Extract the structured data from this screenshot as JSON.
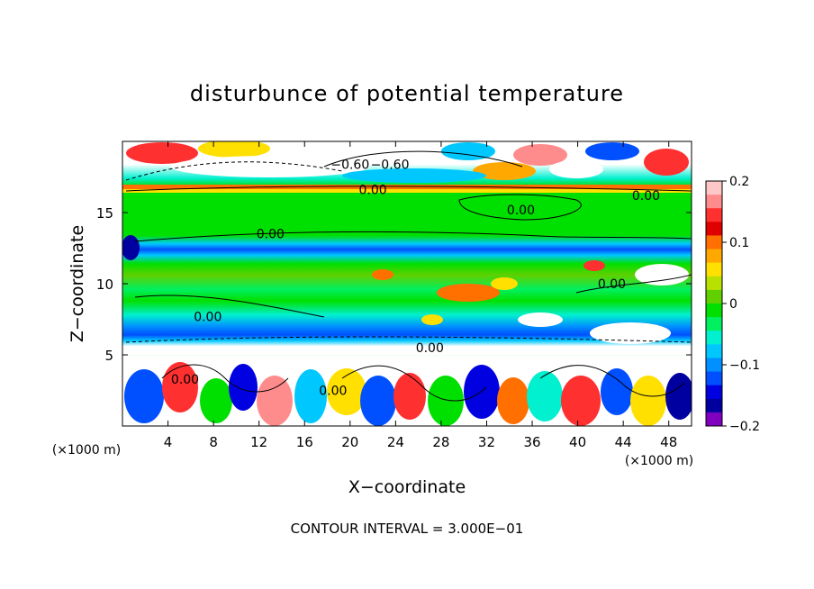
{
  "chart_data": {
    "type": "heatmap",
    "title": "disturbunce of potential temperature",
    "xlabel": "X−coordinate",
    "ylabel": "Z−coordinate",
    "x_unit": "(×1000 m)",
    "y_unit": "(×1000 m)",
    "xlim": [
      0,
      50
    ],
    "ylim": [
      0,
      20
    ],
    "x_ticks": [
      4,
      8,
      12,
      16,
      20,
      24,
      28,
      32,
      36,
      40,
      44,
      48
    ],
    "y_ticks": [
      5,
      10,
      15
    ],
    "colorbar": {
      "min": -0.2,
      "max": 0.2,
      "ticks": [
        0.2,
        0.1,
        0,
        -0.1,
        -0.2
      ],
      "tick_labels": [
        "0.2",
        "0.1",
        "0",
        "−0.1",
        "−0.2"
      ],
      "colors": [
        "#ffc8c8",
        "#ff8c8c",
        "#ff3030",
        "#e00000",
        "#ff7000",
        "#ffa800",
        "#ffe000",
        "#b8e000",
        "#60d000",
        "#00e000",
        "#00f060",
        "#00f0d0",
        "#00c8ff",
        "#0090ff",
        "#0050ff",
        "#0000e0",
        "#0000a0",
        "#8000c0"
      ]
    },
    "contour_labels": [
      {
        "x": 20,
        "z": 18.4,
        "text": "−0.60"
      },
      {
        "x": 23.5,
        "z": 18.4,
        "text": "−0.60"
      },
      {
        "x": 22,
        "z": 16.6,
        "text": "0.00"
      },
      {
        "x": 13,
        "z": 13.5,
        "text": "0.00"
      },
      {
        "x": 35,
        "z": 15.2,
        "text": "0.00"
      },
      {
        "x": 46,
        "z": 16.2,
        "text": "0.00"
      },
      {
        "x": 7.5,
        "z": 7.7,
        "text": "0.00"
      },
      {
        "x": 43,
        "z": 10,
        "text": "0.00"
      },
      {
        "x": 27,
        "z": 5.5,
        "text": "0.00"
      },
      {
        "x": 5.5,
        "z": 3.3,
        "text": "0.00"
      },
      {
        "x": 18.5,
        "z": 2.5,
        "text": "0.00"
      }
    ],
    "footer": "CONTOUR INTERVAL = 3.000E−01"
  }
}
